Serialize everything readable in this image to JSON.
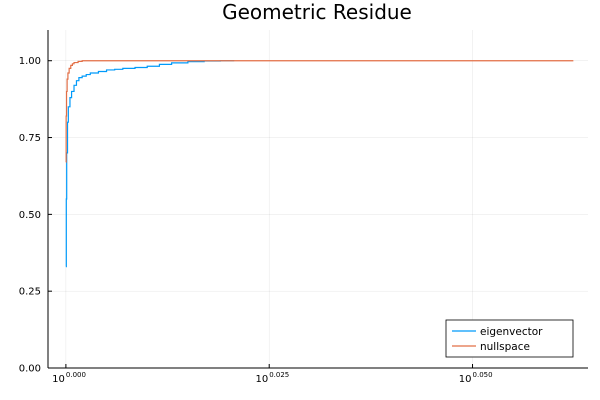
{
  "chart_data": {
    "type": "line",
    "title": "Geometric Residue",
    "xlabel": "",
    "ylabel": "",
    "x_scale": "log10",
    "xlim_exponent": [
      -0.0022,
      0.0642
    ],
    "ylim": [
      0.0,
      1.1
    ],
    "x_ticks": [
      {
        "base": "10",
        "exponent": "0.000",
        "value": 0.0
      },
      {
        "base": "10",
        "exponent": "0.025",
        "value": 0.025
      },
      {
        "base": "10",
        "exponent": "0.050",
        "value": 0.05
      }
    ],
    "y_ticks": [
      "0.00",
      "0.25",
      "0.50",
      "0.75",
      "1.00"
    ],
    "y_tick_values": [
      0.0,
      0.25,
      0.5,
      0.75,
      1.0
    ],
    "grid": true,
    "legend_position": "bottom-right",
    "series": [
      {
        "name": "eigenvector",
        "color": "#009AFA",
        "x_exponent": [
          0.0,
          5e-05,
          0.0001,
          0.0002,
          0.0003,
          0.0005,
          0.0007,
          0.001,
          0.0013,
          0.0016,
          0.002,
          0.0025,
          0.003,
          0.004,
          0.005,
          0.006,
          0.007,
          0.0085,
          0.01,
          0.0115,
          0.013,
          0.015,
          0.017,
          0.019,
          0.0207
        ],
        "y": [
          0.33,
          0.55,
          0.7,
          0.8,
          0.85,
          0.88,
          0.9,
          0.92,
          0.935,
          0.945,
          0.95,
          0.955,
          0.96,
          0.965,
          0.97,
          0.972,
          0.975,
          0.978,
          0.982,
          0.988,
          0.993,
          0.997,
          0.999,
          1.0,
          1.0
        ]
      },
      {
        "name": "nullspace",
        "color": "#E26F46",
        "x_exponent": [
          0.0,
          3e-05,
          8e-05,
          0.00015,
          0.00025,
          0.0004,
          0.0006,
          0.0008,
          0.001,
          0.0015,
          0.002,
          0.005,
          0.02,
          0.04,
          0.0624
        ],
        "y": [
          0.67,
          0.82,
          0.9,
          0.94,
          0.96,
          0.975,
          0.985,
          0.99,
          0.994,
          0.998,
          1.0,
          1.0,
          1.0,
          1.0,
          1.0
        ]
      }
    ]
  }
}
